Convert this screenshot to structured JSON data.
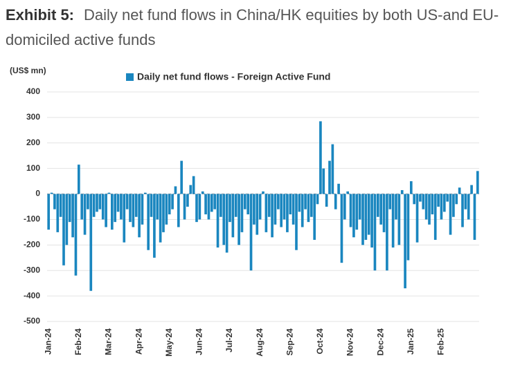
{
  "chart_data": {
    "type": "bar",
    "title_label": "Exhibit 5:",
    "title": "Daily net fund flows in China/HK equities by both US-and EU-domiciled active funds",
    "y_axis_label": "(US$ mn)",
    "series": [
      {
        "name": "Daily net fund flows - Foreign Active Fund",
        "color": "#1a86bf",
        "values": [
          -140,
          5,
          -60,
          -150,
          -90,
          -280,
          -200,
          -110,
          -170,
          -320,
          115,
          -100,
          -160,
          -60,
          -380,
          -90,
          -70,
          -60,
          -100,
          -130,
          5,
          -140,
          -110,
          -70,
          -100,
          -190,
          -60,
          -110,
          -130,
          -90,
          -170,
          -120,
          5,
          -220,
          -90,
          -250,
          -100,
          -190,
          -150,
          -120,
          -80,
          -60,
          30,
          -130,
          130,
          -100,
          -50,
          35,
          70,
          -110,
          -100,
          10,
          -80,
          -100,
          -70,
          -60,
          -210,
          -90,
          -200,
          -230,
          -110,
          -170,
          -90,
          -200,
          -150,
          -60,
          -80,
          -300,
          -120,
          -160,
          -100,
          10,
          -150,
          -90,
          -170,
          -120,
          -60,
          -130,
          -100,
          -150,
          -80,
          -120,
          -220,
          -70,
          -130,
          -60,
          -110,
          -90,
          -180,
          -40,
          285,
          100,
          -50,
          130,
          195,
          -60,
          40,
          -270,
          -100,
          10,
          -130,
          -170,
          -140,
          -100,
          -200,
          -180,
          -160,
          -210,
          -300,
          -90,
          -120,
          -150,
          -300,
          -60,
          -210,
          -100,
          -200,
          15,
          -370,
          -260,
          50,
          -40,
          -190,
          -30,
          -60,
          -100,
          -120,
          -80,
          -180,
          -50,
          -100,
          -70,
          -30,
          -160,
          -90,
          -40,
          25,
          -130,
          -60,
          -100,
          35,
          -180,
          90
        ]
      }
    ],
    "categories": [
      "Jan-24",
      null,
      null,
      null,
      null,
      null,
      null,
      null,
      null,
      null,
      "Feb-24",
      null,
      null,
      null,
      null,
      null,
      null,
      null,
      null,
      null,
      "Mar-24",
      null,
      null,
      null,
      null,
      null,
      null,
      null,
      null,
      null,
      "Apr-24",
      null,
      null,
      null,
      null,
      null,
      null,
      null,
      null,
      null,
      "May-24",
      null,
      null,
      null,
      null,
      null,
      null,
      null,
      null,
      null,
      "Jun-24",
      null,
      null,
      null,
      null,
      null,
      null,
      null,
      null,
      null,
      "Jul-24",
      null,
      null,
      null,
      null,
      null,
      null,
      null,
      null,
      null,
      "Aug-24",
      null,
      null,
      null,
      null,
      null,
      null,
      null,
      null,
      null,
      "Sep-24",
      null,
      null,
      null,
      null,
      null,
      null,
      null,
      null,
      null,
      "Oct-24",
      null,
      null,
      null,
      null,
      null,
      null,
      null,
      null,
      null,
      "Nov-24",
      null,
      null,
      null,
      null,
      null,
      null,
      null,
      null,
      null,
      "Dec-24",
      null,
      null,
      null,
      null,
      null,
      null,
      null,
      null,
      null,
      "Jan-25",
      null,
      null,
      null,
      null,
      null,
      null,
      null,
      null,
      null,
      "Feb-25",
      null,
      null,
      null,
      null,
      null,
      null,
      null,
      null,
      null,
      null,
      null,
      null
    ],
    "ylim": [
      -500,
      400
    ],
    "yticks": [
      -500,
      -400,
      -300,
      -200,
      -100,
      0,
      100,
      200,
      300,
      400
    ],
    "grid": true,
    "legend": "top"
  }
}
